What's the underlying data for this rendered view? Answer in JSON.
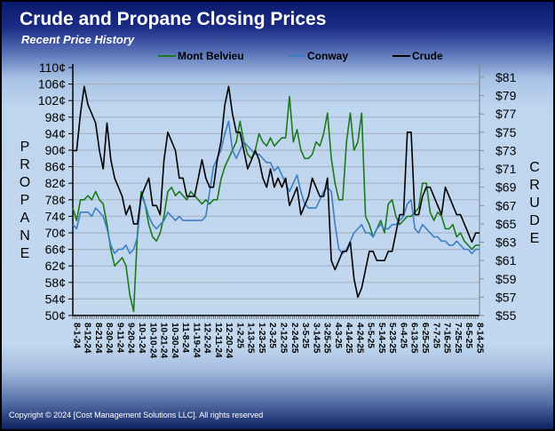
{
  "title": "Crude and Propane Closing Prices",
  "subtitle": "Recent Price History",
  "copyright": "Copyright © 2024 [Cost Management Solutions LLC].  All rights reserved",
  "chart_data": {
    "type": "line",
    "title": "Crude and Propane Closing Prices",
    "subtitle": "Recent Price History",
    "xlabel": "",
    "ylabel": "PROPANE",
    "y2label": "CRUDE",
    "ylim": [
      50,
      110
    ],
    "y2lim": [
      55,
      81
    ],
    "yticks": [
      "110¢",
      "106¢",
      "102¢",
      "98¢",
      "94¢",
      "90¢",
      "86¢",
      "82¢",
      "78¢",
      "74¢",
      "70¢",
      "66¢",
      "62¢",
      "58¢",
      "54¢",
      "50¢"
    ],
    "y2ticks": [
      "$81",
      "$79",
      "$77",
      "$75",
      "$73",
      "$71",
      "$69",
      "$67",
      "$65",
      "$63",
      "$61",
      "$59",
      "$57",
      "$55"
    ],
    "x_tick_labels": [
      "8-1-24",
      "8-12-24",
      "8-21-24",
      "8-30-24",
      "9-11-24",
      "9-20-24",
      "10-1-24",
      "10-10-24",
      "10-21-24",
      "10-30-24",
      "11-8-24",
      "11-19-24",
      "12-2-24",
      "12-11-24",
      "12-20-24",
      "1-2-25",
      "1-13-25",
      "1-23-25",
      "2-3-25",
      "2-12-25",
      "2-24-25",
      "3-5-25",
      "3-14-25",
      "3-25-25",
      "4-3-25",
      "4-14-25",
      "4-24-25",
      "5-5-25",
      "5-14-25",
      "5-23-25",
      "6-4-25",
      "6-13-25",
      "6-25-25",
      "7-7-25",
      "7-16-25",
      "7-25-25",
      "8-5-25",
      "8-14-25"
    ],
    "legend_position": "top",
    "grid": true,
    "series": [
      {
        "name": "Mont Belvieu",
        "axis": "left",
        "color": "#1a7a1a",
        "values": [
          76,
          73,
          78,
          78,
          79,
          78,
          80,
          78,
          77,
          72,
          66,
          62,
          63,
          64,
          62,
          55,
          51,
          70,
          80,
          77,
          72,
          69,
          68,
          70,
          74,
          80,
          81,
          79,
          80,
          79,
          78,
          80,
          79,
          78,
          77,
          78,
          77,
          78,
          78,
          83,
          86,
          88,
          90,
          92,
          97,
          92,
          89,
          88,
          90,
          94,
          92,
          91,
          93,
          91,
          92,
          93,
          93,
          103,
          92,
          95,
          90,
          88,
          88,
          89,
          92,
          91,
          94,
          99,
          88,
          82,
          78,
          78,
          92,
          99,
          90,
          92,
          99,
          74,
          72,
          69,
          71,
          73,
          70,
          77,
          78,
          74,
          72,
          73,
          74,
          74,
          75,
          76,
          82,
          82,
          75,
          73,
          75,
          74,
          71,
          71,
          72,
          69,
          70,
          68,
          67,
          66,
          67,
          67
        ]
      },
      {
        "name": "Conway",
        "axis": "left",
        "color": "#3d7fc4",
        "values": [
          72,
          71,
          75,
          75,
          75,
          74,
          76,
          75,
          74,
          71,
          67,
          65,
          66,
          66,
          67,
          65,
          66,
          69,
          79,
          77,
          74,
          72,
          71,
          72,
          73,
          75,
          74,
          73,
          74,
          73,
          73,
          73,
          73,
          73,
          73,
          74,
          80,
          86,
          88,
          90,
          94,
          97,
          90,
          88,
          90,
          92,
          91,
          90,
          89,
          89,
          88,
          87,
          87,
          85,
          86,
          84,
          82,
          80,
          82,
          84,
          80,
          77,
          76,
          76,
          76,
          78,
          80,
          81,
          80,
          72,
          66,
          65,
          66,
          68,
          70,
          71,
          72,
          70,
          70,
          69,
          71,
          72,
          71,
          71,
          72,
          72,
          73,
          74,
          77,
          78,
          71,
          70,
          72,
          71,
          70,
          69,
          69,
          68,
          68,
          67,
          67,
          68,
          67,
          66,
          66,
          65,
          66,
          66
        ]
      },
      {
        "name": "Crude",
        "axis": "right",
        "color": "#000000",
        "values": [
          73,
          73,
          77,
          80,
          78,
          77,
          76,
          73,
          71,
          76,
          72,
          70,
          69,
          68,
          66,
          67,
          65,
          65,
          68,
          69,
          70,
          67,
          67,
          66,
          72,
          75,
          74,
          73,
          70,
          70,
          68,
          68,
          68,
          70,
          72,
          70,
          69,
          69,
          72,
          74,
          78,
          80,
          77,
          75,
          75,
          73,
          71,
          72,
          73,
          72,
          70,
          69,
          71,
          69,
          70,
          69,
          70,
          67,
          68,
          69,
          66,
          67,
          68,
          70,
          69,
          68,
          68,
          70,
          61,
          60,
          61,
          62,
          62,
          63,
          59,
          57,
          58,
          60,
          62,
          62,
          61,
          61,
          61,
          62,
          62,
          64,
          66,
          66,
          75,
          75,
          66,
          66,
          68,
          69,
          69,
          68,
          67,
          66,
          69,
          68,
          67,
          66,
          66,
          65,
          64,
          63,
          64,
          64
        ]
      }
    ]
  }
}
